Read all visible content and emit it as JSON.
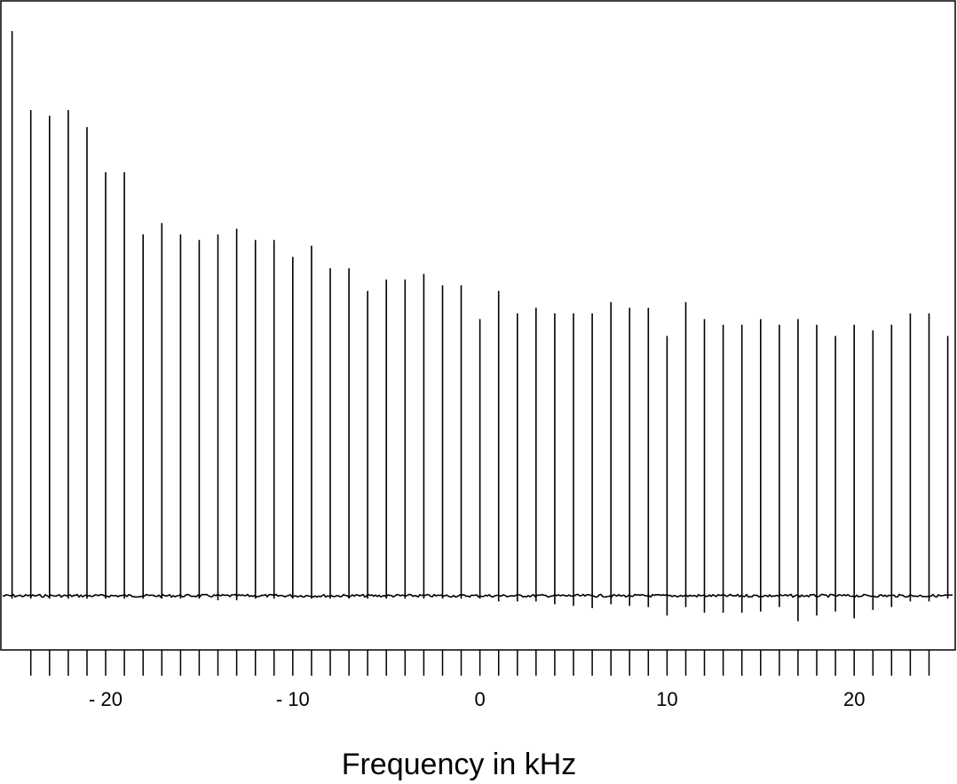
{
  "chart_data": {
    "type": "line",
    "xlabel": "Frequency in kHz",
    "ylabel": "",
    "title": "",
    "xlim": [
      -25.6,
      25.4
    ],
    "ylim": [
      -0.06,
      1.0
    ],
    "grid": false,
    "x_tick_values": [
      -24,
      -23,
      -22,
      -21,
      -20,
      -19,
      -18,
      -17,
      -16,
      -15,
      -14,
      -13,
      -12,
      -11,
      -10,
      -9,
      -8,
      -7,
      -6,
      -5,
      -4,
      -3,
      -2,
      -1,
      0,
      1,
      2,
      3,
      4,
      5,
      6,
      7,
      8,
      9,
      10,
      11,
      12,
      13,
      14,
      15,
      16,
      17,
      18,
      19,
      20,
      21,
      22,
      23,
      24
    ],
    "x_tick_labels": [
      {
        "value": -20,
        "text": "- 20"
      },
      {
        "value": -10,
        "text": "- 10"
      },
      {
        "value": 0,
        "text": "0"
      },
      {
        "value": 10,
        "text": "10"
      },
      {
        "value": 20,
        "text": "20"
      }
    ],
    "series": [
      {
        "x": [
          -25,
          -24,
          -23,
          -22,
          -21,
          -20,
          -19,
          -18,
          -17,
          -16,
          -15,
          -14,
          -13,
          -12,
          -11,
          -10,
          -9,
          -8,
          -7,
          -6,
          -5,
          -4,
          -3,
          -2,
          -1,
          0,
          1,
          2,
          3,
          4,
          5,
          6,
          7,
          8,
          9,
          10,
          11,
          12,
          13,
          14,
          15,
          16,
          17,
          18,
          19,
          20,
          21,
          22,
          23,
          24,
          25
        ],
        "values": [
          1.0,
          0.86,
          0.85,
          0.86,
          0.83,
          0.75,
          0.75,
          0.64,
          0.66,
          0.64,
          0.63,
          0.64,
          0.65,
          0.63,
          0.63,
          0.6,
          0.62,
          0.58,
          0.58,
          0.54,
          0.56,
          0.56,
          0.57,
          0.55,
          0.55,
          0.49,
          0.54,
          0.5,
          0.51,
          0.5,
          0.5,
          0.5,
          0.52,
          0.51,
          0.51,
          0.46,
          0.52,
          0.49,
          0.48,
          0.48,
          0.49,
          0.48,
          0.49,
          0.48,
          0.46,
          0.48,
          0.47,
          0.48,
          0.5,
          0.5,
          0.46
        ],
        "dips": [
          -0.005,
          -0.005,
          -0.005,
          -0.005,
          -0.005,
          -0.005,
          -0.005,
          -0.005,
          -0.005,
          -0.005,
          -0.005,
          -0.008,
          -0.008,
          -0.005,
          -0.005,
          -0.005,
          -0.005,
          -0.005,
          -0.005,
          -0.005,
          -0.005,
          -0.005,
          -0.005,
          -0.005,
          -0.005,
          -0.005,
          -0.01,
          -0.01,
          -0.01,
          -0.015,
          -0.018,
          -0.022,
          -0.015,
          -0.018,
          -0.02,
          -0.035,
          -0.02,
          -0.03,
          -0.03,
          -0.03,
          -0.028,
          -0.02,
          -0.045,
          -0.035,
          -0.028,
          -0.04,
          -0.025,
          -0.02,
          -0.01,
          -0.01,
          -0.005
        ]
      }
    ]
  }
}
